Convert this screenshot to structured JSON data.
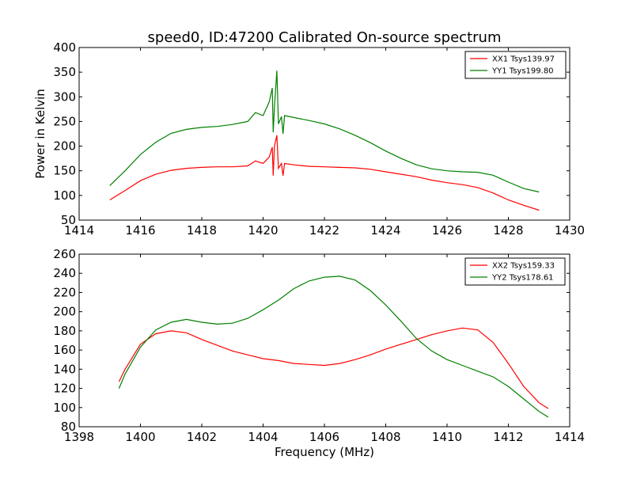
{
  "chart_data": {
    "type": "line",
    "title": "speed0, ID:47200 Calibrated On-source spectrum",
    "grid": false,
    "colors": {
      "series_1": "#ff0000",
      "series_2": "#008000"
    },
    "panels": [
      {
        "xlabel": "",
        "ylabel": "Power in Kelvin",
        "xlim": [
          1414,
          1430
        ],
        "ylim": [
          50,
          400
        ],
        "xticks": [
          "1414",
          "1416",
          "1418",
          "1420",
          "1422",
          "1424",
          "1426",
          "1428",
          "1430"
        ],
        "yticks": [
          "50",
          "100",
          "150",
          "200",
          "250",
          "300",
          "350",
          "400"
        ],
        "legend_position": "top-right",
        "series": [
          {
            "name": "XX1 Tsys139.97",
            "color": "#ff0000",
            "x": [
              1415,
              1415.5,
              1416,
              1416.5,
              1417,
              1417.5,
              1418,
              1418.5,
              1419,
              1419.5,
              1419.75,
              1420,
              1420.2,
              1420.3,
              1420.33,
              1420.37,
              1420.45,
              1420.5,
              1420.6,
              1420.65,
              1420.7,
              1421,
              1421.5,
              1422,
              1422.5,
              1423,
              1423.5,
              1424,
              1424.5,
              1425,
              1425.5,
              1426,
              1426.5,
              1427,
              1427.5,
              1428,
              1428.5,
              1429
            ],
            "y": [
              91,
              110,
              130,
              143,
              151,
              155,
              157,
              158,
              158,
              160,
              170,
              165,
              178,
              198,
              140,
              200,
              222,
              155,
              165,
              140,
              165,
              162,
              159,
              158,
              157,
              156,
              153,
              148,
              143,
              138,
              131,
              126,
              122,
              116,
              105,
              91,
              80,
              70
            ]
          },
          {
            "name": "YY1 Tsys199.80",
            "color": "#008000",
            "x": [
              1415,
              1415.5,
              1416,
              1416.5,
              1417,
              1417.5,
              1418,
              1418.5,
              1419,
              1419.5,
              1419.75,
              1420,
              1420.2,
              1420.3,
              1420.33,
              1420.37,
              1420.45,
              1420.5,
              1420.6,
              1420.65,
              1420.7,
              1421,
              1421.5,
              1422,
              1422.5,
              1423,
              1423.5,
              1424,
              1424.5,
              1425,
              1425.5,
              1426,
              1426.5,
              1427,
              1427.5,
              1428,
              1428.5,
              1429
            ],
            "y": [
              120,
              150,
              183,
              208,
              226,
              234,
              238,
              240,
              244,
              250,
              268,
              262,
              290,
              318,
              228,
              278,
              353,
              245,
              260,
              225,
              262,
              258,
              252,
              245,
              235,
              222,
              207,
              190,
              175,
              162,
              154,
              150,
              148,
              147,
              141,
              127,
              114,
              107
            ]
          }
        ]
      },
      {
        "xlabel": "Frequency (MHz)",
        "ylabel": "",
        "xlim": [
          1398,
          1414
        ],
        "ylim": [
          80,
          260
        ],
        "xticks": [
          "1398",
          "1400",
          "1402",
          "1404",
          "1406",
          "1408",
          "1410",
          "1412",
          "1414"
        ],
        "yticks": [
          "80",
          "100",
          "120",
          "140",
          "160",
          "180",
          "200",
          "220",
          "240",
          "260"
        ],
        "legend_position": "top-right",
        "series": [
          {
            "name": "XX2 Tsys159.33",
            "color": "#ff0000",
            "x": [
              1399.3,
              1399.5,
              1400,
              1400.5,
              1401,
              1401.5,
              1402,
              1402.5,
              1403,
              1403.5,
              1404,
              1404.5,
              1405,
              1405.5,
              1406,
              1406.5,
              1407,
              1407.5,
              1408,
              1408.5,
              1409,
              1409.5,
              1410,
              1410.5,
              1411,
              1411.5,
              1412,
              1412.5,
              1413,
              1413.3
            ],
            "y": [
              127,
              140,
              166,
              177,
              180,
              178,
              171,
              165,
              159,
              155,
              151,
              149,
              146,
              145,
              144,
              146,
              150,
              155,
              161,
              166,
              171,
              176,
              180,
              183,
              181,
              168,
              146,
              122,
              105,
              99
            ]
          },
          {
            "name": "YY2 Tsys178.61",
            "color": "#008000",
            "x": [
              1399.3,
              1399.5,
              1400,
              1400.5,
              1401,
              1401.5,
              1402,
              1402.5,
              1403,
              1403.5,
              1404,
              1404.5,
              1405,
              1405.5,
              1406,
              1406.5,
              1407,
              1407.5,
              1408,
              1408.5,
              1409,
              1409.5,
              1410,
              1410.5,
              1411,
              1411.5,
              1412,
              1412.5,
              1413,
              1413.3
            ],
            "y": [
              120,
              135,
              163,
              181,
              189,
              192,
              189,
              187,
              188,
              193,
              202,
              212,
              224,
              232,
              236,
              237,
              233,
              222,
              207,
              190,
              172,
              159,
              150,
              144,
              138,
              132,
              122,
              109,
              96,
              90
            ]
          }
        ]
      }
    ]
  }
}
